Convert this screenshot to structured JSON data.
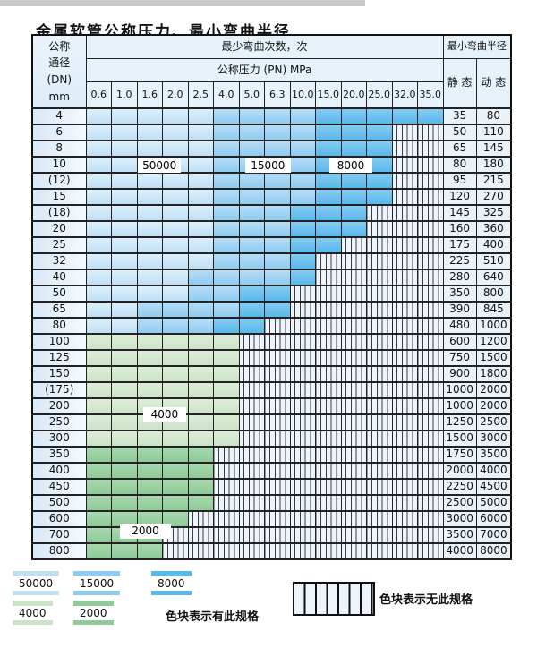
{
  "title": "金属软管公称压力、最小弯曲半径",
  "table": {
    "corner_header_lines": [
      "公称",
      "通径",
      "(DN)",
      "mm"
    ],
    "bend_header": "最少弯曲次数，次",
    "radius_header": "最小弯曲半径",
    "pressure_header": "公称压力 (PN) MPa",
    "pressure_columns": [
      "0.6",
      "1.0",
      "1.6",
      "2.0",
      "2.5",
      "4.0",
      "5.0",
      "6.3",
      "10.0",
      "15.0",
      "20.0",
      "25.0",
      "32.0",
      "35.0"
    ],
    "static_header": "静 态",
    "dynamic_header": "动 态",
    "cell_code_legend": {
      "L": "50000",
      "M": "15000",
      "D": "8000",
      "G": "4000",
      "E": "2000",
      "S": "no-spec-striped"
    },
    "rows": [
      {
        "dn": "4",
        "cells": "LLLLLMMMMDDDDD",
        "static": "35",
        "dynamic": "80"
      },
      {
        "dn": "6",
        "cells": "LLLLLMMMMDDDSS",
        "static": "50",
        "dynamic": "110"
      },
      {
        "dn": "8",
        "cells": "LLLLLMMMMDDDSS",
        "static": "65",
        "dynamic": "145"
      },
      {
        "dn": "10",
        "cells": "LLLLLMMMMDDDSS",
        "static": "80",
        "dynamic": "180"
      },
      {
        "dn": "(12)",
        "cells": "LLLLLMMMMDDDSS",
        "static": "95",
        "dynamic": "215"
      },
      {
        "dn": "15",
        "cells": "LLLLLMMMMDDDSS",
        "static": "120",
        "dynamic": "270"
      },
      {
        "dn": "(18)",
        "cells": "LLLLLMMMDDDSSS",
        "static": "145",
        "dynamic": "325"
      },
      {
        "dn": "20",
        "cells": "LLLLLMMMDDDSSS",
        "static": "160",
        "dynamic": "360"
      },
      {
        "dn": "25",
        "cells": "LLLLLMMMDDSSSS",
        "static": "175",
        "dynamic": "400"
      },
      {
        "dn": "32",
        "cells": "LLLLLMMMDSSSSS",
        "static": "225",
        "dynamic": "510"
      },
      {
        "dn": "40",
        "cells": "LLLLMMMMDSSSSS",
        "static": "280",
        "dynamic": "640"
      },
      {
        "dn": "50",
        "cells": "LLLLMMDDSSSSSS",
        "static": "350",
        "dynamic": "800"
      },
      {
        "dn": "65",
        "cells": "LLMMMMDDSSSSSS",
        "static": "390",
        "dynamic": "845"
      },
      {
        "dn": "80",
        "cells": "LLMMMDDSSSSSSS",
        "static": "480",
        "dynamic": "1000"
      },
      {
        "dn": "100",
        "cells": "GGGGGGSSSSSSSS",
        "static": "600",
        "dynamic": "1200"
      },
      {
        "dn": "125",
        "cells": "GGGGGGSSSSSSSS",
        "static": "750",
        "dynamic": "1500"
      },
      {
        "dn": "150",
        "cells": "GGGGGGSSSSSSSS",
        "static": "900",
        "dynamic": "1800"
      },
      {
        "dn": "(175)",
        "cells": "GGGGGGSSSSSSSS",
        "static": "1000",
        "dynamic": "2000"
      },
      {
        "dn": "200",
        "cells": "GGGGGGSSSSSSSS",
        "static": "1000",
        "dynamic": "2000"
      },
      {
        "dn": "250",
        "cells": "GGGGGGSSSSSSSS",
        "static": "1250",
        "dynamic": "2500"
      },
      {
        "dn": "300",
        "cells": "GGGGGGSSSSSSSS",
        "static": "1500",
        "dynamic": "3000"
      },
      {
        "dn": "350",
        "cells": "EEEEESSSSSSSSS",
        "static": "1750",
        "dynamic": "3500"
      },
      {
        "dn": "400",
        "cells": "EEEEESSSSSSSSS",
        "static": "2000",
        "dynamic": "4000"
      },
      {
        "dn": "450",
        "cells": "EEEEESSSSSSSSS",
        "static": "2250",
        "dynamic": "4500"
      },
      {
        "dn": "500",
        "cells": "EEEEESSSSSSSSS",
        "static": "2500",
        "dynamic": "5000"
      },
      {
        "dn": "600",
        "cells": "EEEESSSSSSSSSS",
        "static": "3000",
        "dynamic": "6000"
      },
      {
        "dn": "700",
        "cells": "EEESSSSSSSSSSS",
        "static": "3500",
        "dynamic": "7000"
      },
      {
        "dn": "800",
        "cells": "EEESSSSSSSSSSS",
        "static": "4000",
        "dynamic": "8000"
      }
    ]
  },
  "overlay_labels": [
    {
      "text": "50000",
      "row": 3,
      "col_start": 2.0,
      "col_end": 3.7
    },
    {
      "text": "15000",
      "row": 3,
      "col_start": 6.2,
      "col_end": 8.0
    },
    {
      "text": "8000",
      "row": 3,
      "col_start": 9.5,
      "col_end": 11.2
    },
    {
      "text": "4000",
      "row": 18,
      "col_start": 2.2,
      "col_end": 3.9
    },
    {
      "text": "2000",
      "row": 25,
      "col_start": 1.3,
      "col_end": 3.3
    }
  ],
  "legend": {
    "blue_items": [
      {
        "label": "50000",
        "class": "sw-blue-light"
      },
      {
        "label": "15000",
        "class": "sw-blue-medium"
      },
      {
        "label": "8000",
        "class": "sw-blue-dark"
      }
    ],
    "green_items": [
      {
        "label": "4000",
        "class": "sw-green-light"
      },
      {
        "label": "2000",
        "class": "sw-green-dark"
      }
    ],
    "has_spec_text": "色块表示有此规格",
    "no_spec_text": "色块表示无此规格"
  },
  "colors": {
    "blue_light_50000": "#bfe0f5",
    "blue_medium_15000": "#8fcbf0",
    "blue_dark_8000": "#58b8ea",
    "green_light_4000": "#cde3c8",
    "green_dark_2000": "#8fca98",
    "striped_bg": "#eef4fb",
    "header_bg": "#e6f1fa",
    "grid": "#222222"
  }
}
